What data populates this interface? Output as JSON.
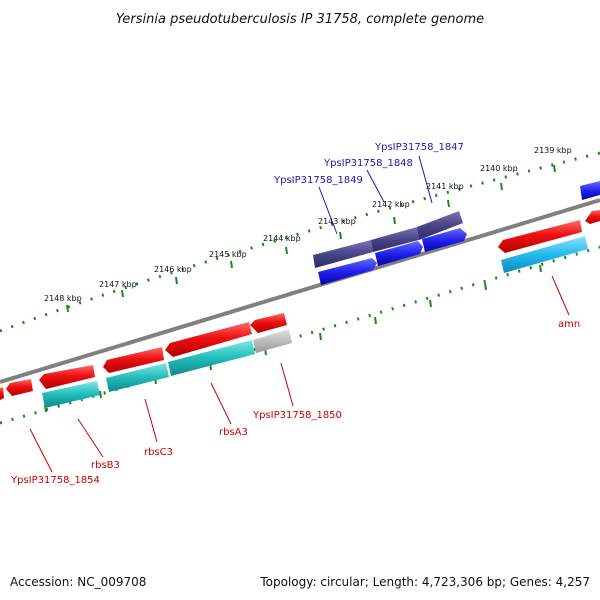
{
  "title": "Yersinia pseudotuberculosis IP 31758, complete genome",
  "footer": {
    "accession": "Accession: NC_009708",
    "topology": "Topology: circular; Length: 4,723,306 bp; Genes: 4,257"
  },
  "ticks": [
    {
      "label": "2148 kbp"
    },
    {
      "label": "2147 kbp"
    },
    {
      "label": "2146 kbp"
    },
    {
      "label": "2145 kbp"
    },
    {
      "label": "2144 kbp"
    },
    {
      "label": "2143 kbp"
    },
    {
      "label": "2142 kbp"
    },
    {
      "label": "2141 kbp"
    },
    {
      "label": "2140 kbp"
    },
    {
      "label": "2139 kbp"
    }
  ],
  "gene_labels_top": [
    {
      "label": "YpsIP31758_1847"
    },
    {
      "label": "YpsIP31758_1848"
    },
    {
      "label": "YpsIP31758_1849"
    }
  ],
  "gene_labels_bottom": [
    {
      "label": "amn"
    },
    {
      "label": "YpsIP31758_1850"
    },
    {
      "label": "rbsA3"
    },
    {
      "label": "rbsC3"
    },
    {
      "label": "rbsB3"
    },
    {
      "label": "YpsIP31758_1854"
    }
  ],
  "colors": {
    "backbone": "#808080",
    "ticks": "#1a8a1a",
    "forward_gene": "#2222ee",
    "forward_gene_dark": "#4a4488",
    "reverse_gene": "#ee1111",
    "reverse_cds": "#22bbbb",
    "reverse_cds_light": "#22bbee",
    "pseudo": "#bbbbbb"
  }
}
